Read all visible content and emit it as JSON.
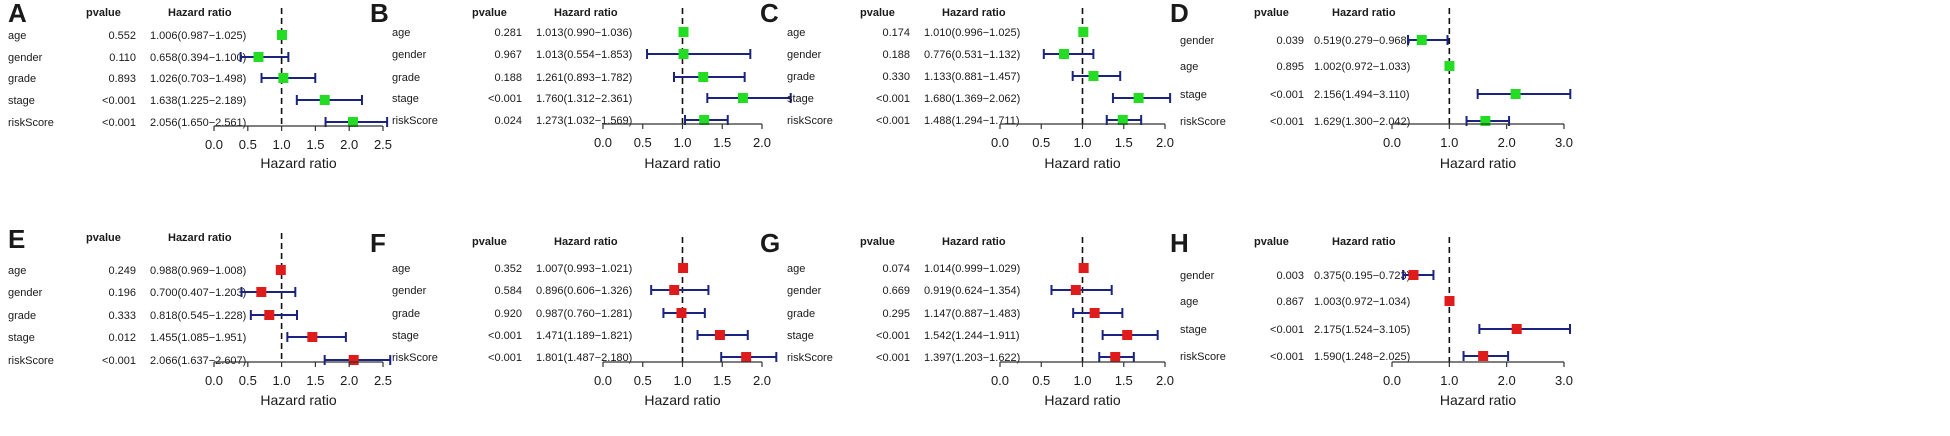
{
  "figure_title": "Forest plots of univariate and multivariate Cox regression analyses",
  "colors": {
    "green": "#22dd22",
    "red": "#e01b1b",
    "ci": "#1a237e",
    "axis": "#333333"
  },
  "chart_data": [
    {
      "panel": "A",
      "type": "forest",
      "pvalue_header": "pvalue",
      "hr_header": "Hazard ratio",
      "xlabel": "Hazard ratio",
      "xlim": [
        0,
        2.5
      ],
      "ticks": [
        0.0,
        0.5,
        1.0,
        1.5,
        2.0,
        2.5
      ],
      "tick_labels": [
        "0.0",
        "0.5",
        "1.0",
        "1.5",
        "2.0",
        "2.5"
      ],
      "marker_color": "green",
      "rows": [
        {
          "label": "age",
          "pvalue": "0.552",
          "hr_text": "1.006(0.987−1.025)",
          "hr": 1.006,
          "lo": 0.987,
          "hi": 1.025
        },
        {
          "label": "gender",
          "pvalue": "0.110",
          "hr_text": "0.658(0.394−1.100)",
          "hr": 0.658,
          "lo": 0.394,
          "hi": 1.1
        },
        {
          "label": "grade",
          "pvalue": "0.893",
          "hr_text": "1.026(0.703−1.498)",
          "hr": 1.026,
          "lo": 0.703,
          "hi": 1.498
        },
        {
          "label": "stage",
          "pvalue": "<0.001",
          "hr_text": "1.638(1.225−2.189)",
          "hr": 1.638,
          "lo": 1.225,
          "hi": 2.189
        },
        {
          "label": "riskScore",
          "pvalue": "<0.001",
          "hr_text": "2.056(1.650−2.561)",
          "hr": 2.056,
          "lo": 1.65,
          "hi": 2.561
        }
      ]
    },
    {
      "panel": "B",
      "type": "forest",
      "pvalue_header": "pvalue",
      "hr_header": "Hazard ratio",
      "xlabel": "Hazard ratio",
      "xlim": [
        0,
        2.0
      ],
      "ticks": [
        0.0,
        0.5,
        1.0,
        1.5,
        2.0
      ],
      "tick_labels": [
        "0.0",
        "0.5",
        "1.0",
        "1.5",
        "2.0"
      ],
      "marker_color": "green",
      "rows": [
        {
          "label": "age",
          "pvalue": "0.281",
          "hr_text": "1.013(0.990−1.036)",
          "hr": 1.013,
          "lo": 0.99,
          "hi": 1.036
        },
        {
          "label": "gender",
          "pvalue": "0.967",
          "hr_text": "1.013(0.554−1.853)",
          "hr": 1.013,
          "lo": 0.554,
          "hi": 1.853
        },
        {
          "label": "grade",
          "pvalue": "0.188",
          "hr_text": "1.261(0.893−1.782)",
          "hr": 1.261,
          "lo": 0.893,
          "hi": 1.782
        },
        {
          "label": "stage",
          "pvalue": "<0.001",
          "hr_text": "1.760(1.312−2.361)",
          "hr": 1.76,
          "lo": 1.312,
          "hi": 2.361
        },
        {
          "label": "riskScore",
          "pvalue": "0.024",
          "hr_text": "1.273(1.032−1.569)",
          "hr": 1.273,
          "lo": 1.032,
          "hi": 1.569
        }
      ]
    },
    {
      "panel": "C",
      "type": "forest",
      "pvalue_header": "pvalue",
      "hr_header": "Hazard ratio",
      "xlabel": "Hazard ratio",
      "xlim": [
        0,
        2.0
      ],
      "ticks": [
        0.0,
        0.5,
        1.0,
        1.5,
        2.0
      ],
      "tick_labels": [
        "0.0",
        "0.5",
        "1.0",
        "1.5",
        "2.0"
      ],
      "marker_color": "green",
      "rows": [
        {
          "label": "age",
          "pvalue": "0.174",
          "hr_text": "1.010(0.996−1.025)",
          "hr": 1.01,
          "lo": 0.996,
          "hi": 1.025
        },
        {
          "label": "gender",
          "pvalue": "0.188",
          "hr_text": "0.776(0.531−1.132)",
          "hr": 0.776,
          "lo": 0.531,
          "hi": 1.132
        },
        {
          "label": "grade",
          "pvalue": "0.330",
          "hr_text": "1.133(0.881−1.457)",
          "hr": 1.133,
          "lo": 0.881,
          "hi": 1.457
        },
        {
          "label": "stage",
          "pvalue": "<0.001",
          "hr_text": "1.680(1.369−2.062)",
          "hr": 1.68,
          "lo": 1.369,
          "hi": 2.062
        },
        {
          "label": "riskScore",
          "pvalue": "<0.001",
          "hr_text": "1.488(1.294−1.711)",
          "hr": 1.488,
          "lo": 1.294,
          "hi": 1.711
        }
      ]
    },
    {
      "panel": "D",
      "type": "forest",
      "pvalue_header": "pvalue",
      "hr_header": "Hazard ratio",
      "xlabel": "Hazard ratio",
      "xlim": [
        0,
        3.0
      ],
      "ticks": [
        0.0,
        1.0,
        2.0,
        3.0
      ],
      "tick_labels": [
        "0.0",
        "1.0",
        "2.0",
        "3.0"
      ],
      "marker_color": "green",
      "rows": [
        {
          "label": "gender",
          "pvalue": "0.039",
          "hr_text": "0.519(0.279−0.968)",
          "hr": 0.519,
          "lo": 0.279,
          "hi": 0.968
        },
        {
          "label": "age",
          "pvalue": "0.895",
          "hr_text": "1.002(0.972−1.033)",
          "hr": 1.002,
          "lo": 0.972,
          "hi": 1.033
        },
        {
          "label": "stage",
          "pvalue": "<0.001",
          "hr_text": "2.156(1.494−3.110)",
          "hr": 2.156,
          "lo": 1.494,
          "hi": 3.11
        },
        {
          "label": "riskScore",
          "pvalue": "<0.001",
          "hr_text": "1.629(1.300−2.042)",
          "hr": 1.629,
          "lo": 1.3,
          "hi": 2.042
        }
      ]
    },
    {
      "panel": "E",
      "type": "forest",
      "pvalue_header": "pvalue",
      "hr_header": "Hazard ratio",
      "xlabel": "Hazard ratio",
      "xlim": [
        0,
        2.5
      ],
      "ticks": [
        0.0,
        0.5,
        1.0,
        1.5,
        2.0,
        2.5
      ],
      "tick_labels": [
        "0.0",
        "0.5",
        "1.0",
        "1.5",
        "2.0",
        "2.5"
      ],
      "marker_color": "red",
      "rows": [
        {
          "label": "age",
          "pvalue": "0.249",
          "hr_text": "0.988(0.969−1.008)",
          "hr": 0.988,
          "lo": 0.969,
          "hi": 1.008
        },
        {
          "label": "gender",
          "pvalue": "0.196",
          "hr_text": "0.700(0.407−1.203)",
          "hr": 0.7,
          "lo": 0.407,
          "hi": 1.203
        },
        {
          "label": "grade",
          "pvalue": "0.333",
          "hr_text": "0.818(0.545−1.228)",
          "hr": 0.818,
          "lo": 0.545,
          "hi": 1.228
        },
        {
          "label": "stage",
          "pvalue": "0.012",
          "hr_text": "1.455(1.085−1.951)",
          "hr": 1.455,
          "lo": 1.085,
          "hi": 1.951
        },
        {
          "label": "riskScore",
          "pvalue": "<0.001",
          "hr_text": "2.066(1.637−2.607)",
          "hr": 2.066,
          "lo": 1.637,
          "hi": 2.607
        }
      ]
    },
    {
      "panel": "F",
      "type": "forest",
      "pvalue_header": "pvalue",
      "hr_header": "Hazard ratio",
      "xlabel": "Hazard ratio",
      "xlim": [
        0,
        2.0
      ],
      "ticks": [
        0.0,
        0.5,
        1.0,
        1.5,
        2.0
      ],
      "tick_labels": [
        "0.0",
        "0.5",
        "1.0",
        "1.5",
        "2.0"
      ],
      "marker_color": "red",
      "rows": [
        {
          "label": "age",
          "pvalue": "0.352",
          "hr_text": "1.007(0.993−1.021)",
          "hr": 1.007,
          "lo": 0.993,
          "hi": 1.021
        },
        {
          "label": "gender",
          "pvalue": "0.584",
          "hr_text": "0.896(0.606−1.326)",
          "hr": 0.896,
          "lo": 0.606,
          "hi": 1.326
        },
        {
          "label": "grade",
          "pvalue": "0.920",
          "hr_text": "0.987(0.760−1.281)",
          "hr": 0.987,
          "lo": 0.76,
          "hi": 1.281
        },
        {
          "label": "stage",
          "pvalue": "<0.001",
          "hr_text": "1.471(1.189−1.821)",
          "hr": 1.471,
          "lo": 1.189,
          "hi": 1.821
        },
        {
          "label": "riskScore",
          "pvalue": "<0.001",
          "hr_text": "1.801(1.487−2.180)",
          "hr": 1.801,
          "lo": 1.487,
          "hi": 2.18
        }
      ]
    },
    {
      "panel": "G",
      "type": "forest",
      "pvalue_header": "pvalue",
      "hr_header": "Hazard ratio",
      "xlabel": "Hazard ratio",
      "xlim": [
        0,
        2.0
      ],
      "ticks": [
        0.0,
        0.5,
        1.0,
        1.5,
        2.0
      ],
      "tick_labels": [
        "0.0",
        "0.5",
        "1.0",
        "1.5",
        "2.0"
      ],
      "marker_color": "red",
      "rows": [
        {
          "label": "age",
          "pvalue": "0.074",
          "hr_text": "1.014(0.999−1.029)",
          "hr": 1.014,
          "lo": 0.999,
          "hi": 1.029
        },
        {
          "label": "gender",
          "pvalue": "0.669",
          "hr_text": "0.919(0.624−1.354)",
          "hr": 0.919,
          "lo": 0.624,
          "hi": 1.354
        },
        {
          "label": "grade",
          "pvalue": "0.295",
          "hr_text": "1.147(0.887−1.483)",
          "hr": 1.147,
          "lo": 0.887,
          "hi": 1.483
        },
        {
          "label": "stage",
          "pvalue": "<0.001",
          "hr_text": "1.542(1.244−1.911)",
          "hr": 1.542,
          "lo": 1.244,
          "hi": 1.911
        },
        {
          "label": "riskScore",
          "pvalue": "<0.001",
          "hr_text": "1.397(1.203−1.622)",
          "hr": 1.397,
          "lo": 1.203,
          "hi": 1.622
        }
      ]
    },
    {
      "panel": "H",
      "type": "forest",
      "pvalue_header": "pvalue",
      "hr_header": "Hazard ratio",
      "xlabel": "Hazard ratio",
      "xlim": [
        0,
        3.0
      ],
      "ticks": [
        0.0,
        1.0,
        2.0,
        3.0
      ],
      "tick_labels": [
        "0.0",
        "1.0",
        "2.0",
        "3.0"
      ],
      "marker_color": "red",
      "rows": [
        {
          "label": "gender",
          "pvalue": "0.003",
          "hr_text": "0.375(0.195−0.723)",
          "hr": 0.375,
          "lo": 0.195,
          "hi": 0.723
        },
        {
          "label": "age",
          "pvalue": "0.867",
          "hr_text": "1.003(0.972−1.034)",
          "hr": 1.003,
          "lo": 0.972,
          "hi": 1.034
        },
        {
          "label": "stage",
          "pvalue": "<0.001",
          "hr_text": "2.175(1.524−3.105)",
          "hr": 2.175,
          "lo": 1.524,
          "hi": 3.105
        },
        {
          "label": "riskScore",
          "pvalue": "<0.001",
          "hr_text": "1.590(1.248−2.025)",
          "hr": 1.59,
          "lo": 1.248,
          "hi": 2.025
        }
      ]
    }
  ]
}
